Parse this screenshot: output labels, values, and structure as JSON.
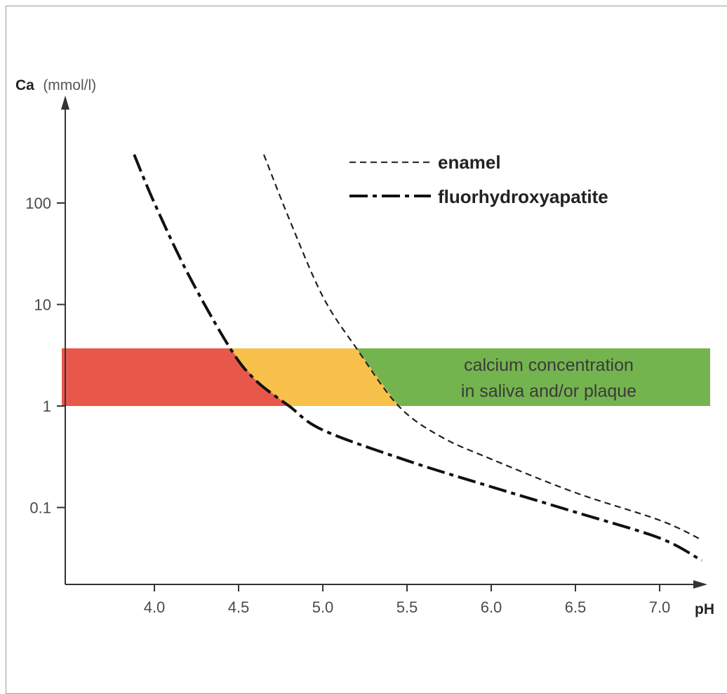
{
  "chart_data": {
    "type": "line",
    "title": "",
    "xlabel": "pH",
    "ylabel_name": "Ca",
    "ylabel_unit": "(mmol/l)",
    "y_scale": "log",
    "xlim": [
      3.45,
      7.3
    ],
    "ylim": [
      0.022,
      1000
    ],
    "x_ticks": [
      4.0,
      4.5,
      5.0,
      5.5,
      6.0,
      6.5,
      7.0
    ],
    "x_tick_labels": [
      "4.0",
      "4.5",
      "5.0",
      "5.5",
      "6.0",
      "6.5",
      "7.0"
    ],
    "y_ticks": [
      0.1,
      1,
      10,
      100
    ],
    "y_tick_labels": [
      "0.1",
      "1",
      "10",
      "100"
    ],
    "grid": false,
    "legend_position": "top-right",
    "series": [
      {
        "name": "enamel",
        "line_style": "dashed",
        "color": "#222222",
        "x": [
          4.65,
          4.8,
          5.0,
          5.2,
          5.45,
          5.7,
          6.0,
          6.5,
          7.0,
          7.25
        ],
        "y": [
          300,
          70,
          12,
          3.7,
          1.0,
          0.5,
          0.3,
          0.14,
          0.075,
          0.048
        ]
      },
      {
        "name": "fluorhydroxyapatite",
        "line_style": "dash-dot",
        "color": "#111111",
        "x": [
          3.88,
          4.0,
          4.2,
          4.45,
          4.6,
          4.8,
          5.0,
          5.5,
          6.0,
          6.5,
          7.0,
          7.25
        ],
        "y": [
          300,
          100,
          20,
          3.7,
          1.8,
          1.0,
          0.58,
          0.29,
          0.16,
          0.09,
          0.05,
          0.03
        ]
      }
    ],
    "band": {
      "label_lines": [
        "calcium concentration",
        "in saliva and/or plaque"
      ],
      "y_range": [
        1,
        3.7
      ],
      "x_range": [
        3.45,
        7.3
      ],
      "zones": [
        {
          "x_range": [
            3.45,
            5.45
          ],
          "color": "#e8584a"
        },
        {
          "x_range": [
            4.45,
            5.45
          ],
          "color": "#f7c14b"
        },
        {
          "x_range": [
            5.2,
            7.3
          ],
          "color": "#74b44f"
        }
      ]
    }
  }
}
